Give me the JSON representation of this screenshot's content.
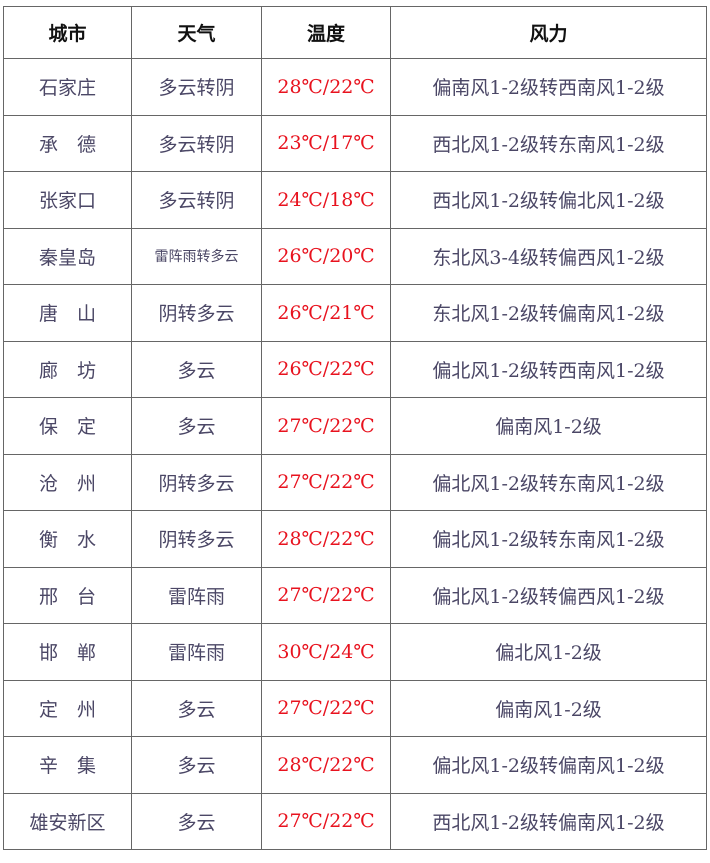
{
  "headers": [
    "城市",
    "天气",
    "温度",
    "风力"
  ],
  "rows": [
    {
      "city": "石家庄",
      "weather": "多云转阴",
      "temp": "28℃/22℃",
      "wind": "偏南风1-2级转西南风1-2级"
    },
    {
      "city": "承　德",
      "weather": "多云转阴",
      "temp": "23℃/17℃",
      "wind": "西北风1-2级转东南风1-2级"
    },
    {
      "city": "张家口",
      "weather": "多云转阴",
      "temp": "24℃/18℃",
      "wind": "西北风1-2级转偏北风1-2级"
    },
    {
      "city": "秦皇岛",
      "weather": "雷阵雨转多云",
      "temp": "26℃/20℃",
      "wind": "东北风3-4级转偏西风1-2级"
    },
    {
      "city": "唐　山",
      "weather": "阴转多云",
      "temp": "26℃/21℃",
      "wind": "东北风1-2级转偏南风1-2级"
    },
    {
      "city": "廊　坊",
      "weather": "多云",
      "temp": "26℃/22℃",
      "wind": "偏北风1-2级转西南风1-2级"
    },
    {
      "city": "保　定",
      "weather": "多云",
      "temp": "27℃/22℃",
      "wind": "偏南风1-2级"
    },
    {
      "city": "沧　州",
      "weather": "阴转多云",
      "temp": "27℃/22℃",
      "wind": "偏北风1-2级转东南风1-2级"
    },
    {
      "city": "衡　水",
      "weather": "阴转多云",
      "temp": "28℃/22℃",
      "wind": "偏北风1-2级转东南风1-2级"
    },
    {
      "city": "邢　台",
      "weather": "雷阵雨",
      "temp": "27℃/22℃",
      "wind": "偏北风1-2级转偏西风1-2级"
    },
    {
      "city": "邯　郸",
      "weather": "雷阵雨",
      "temp": "30℃/24℃",
      "wind": "偏北风1-2级"
    },
    {
      "city": "定　州",
      "weather": "多云",
      "temp": "27℃/22℃",
      "wind": "偏南风1-2级"
    },
    {
      "city": "辛　集",
      "weather": "多云",
      "temp": "28℃/22℃",
      "wind": "偏北风1-2级转偏南风1-2级"
    },
    {
      "city": "雄安新区",
      "weather": "多云",
      "temp": "27℃/22℃",
      "wind": "西北风1-2级转偏南风1-2级"
    }
  ],
  "colors": {
    "temperature": "#e8121e",
    "text": "#4b4766",
    "border": "#666666"
  }
}
